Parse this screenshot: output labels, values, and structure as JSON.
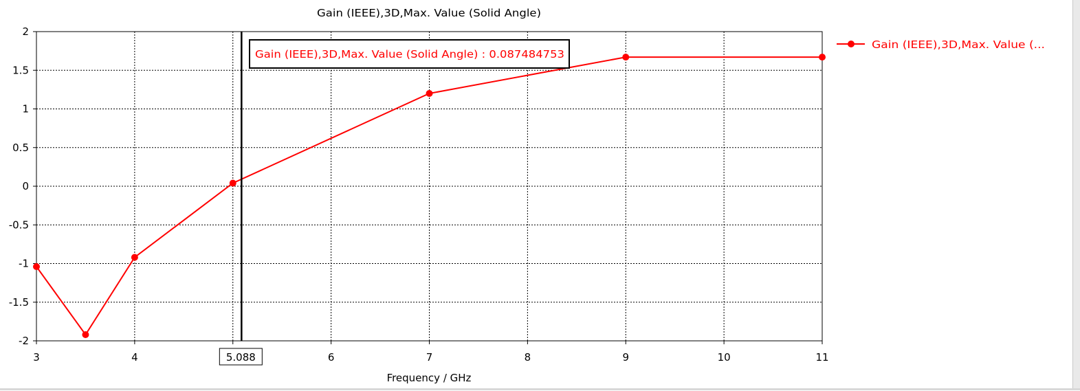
{
  "chart_data": {
    "type": "line",
    "title": "Gain (IEEE),3D,Max. Value (Solid Angle)",
    "xlabel": "Frequency / GHz",
    "ylabel": "",
    "xlim": [
      3,
      11
    ],
    "ylim": [
      -2,
      2
    ],
    "x_ticks": [
      "3",
      "4",
      "5",
      "6",
      "7",
      "8",
      "9",
      "10",
      "11"
    ],
    "y_ticks": [
      "2",
      "1.5",
      "1",
      "0.5",
      "0",
      "-0.5",
      "-1",
      "-1.5",
      "-2"
    ],
    "grid": true,
    "legend_position": "right",
    "series": [
      {
        "name": "Gain (IEEE),3D,Max. Value (...",
        "color": "#ff0000",
        "x": [
          3,
          3.5,
          4,
          5,
          7,
          9,
          11
        ],
        "y": [
          -1.04,
          -1.92,
          -0.92,
          0.04,
          1.2,
          1.67,
          1.67
        ]
      }
    ],
    "marker": {
      "x": 5.088,
      "x_label": "5.088",
      "tooltip": "Gain (IEEE),3D,Max. Value (Solid Angle) : 0.087484753"
    }
  }
}
